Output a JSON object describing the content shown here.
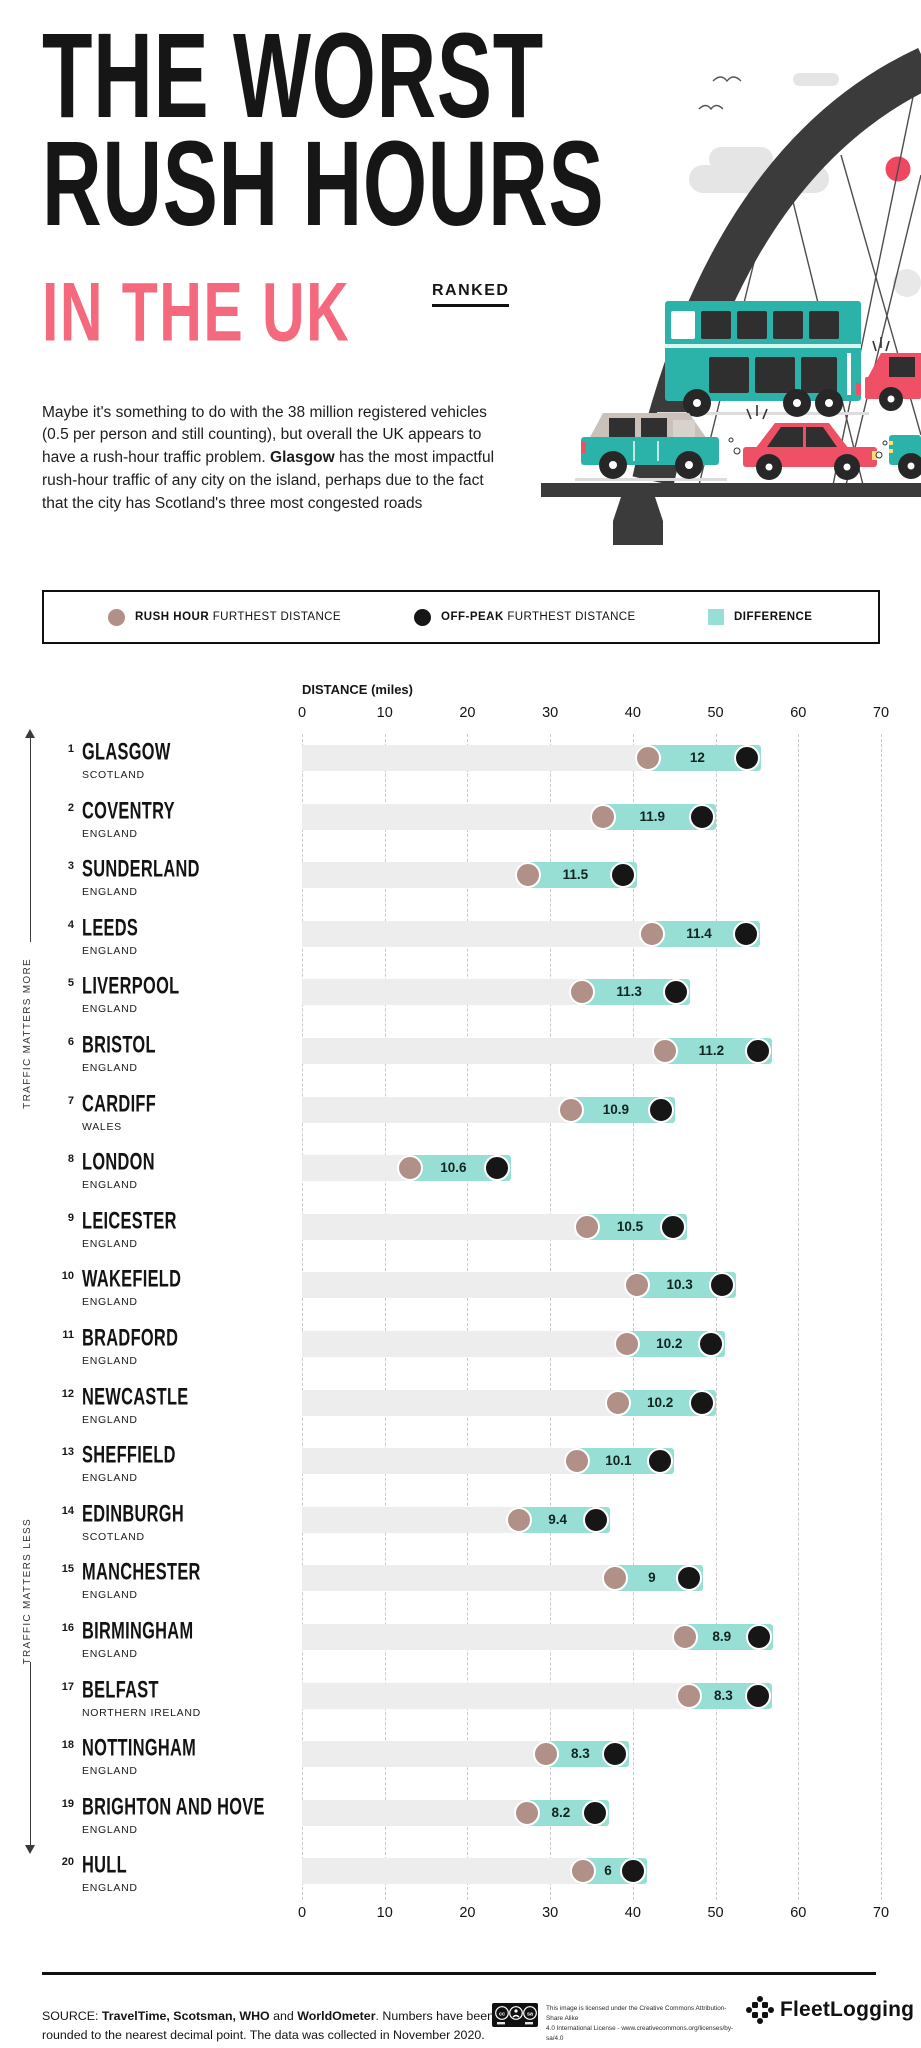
{
  "header": {
    "title_line1": "THE WORST",
    "title_line2": "RUSH HOURS",
    "subtitle": "IN THE UK",
    "ranked_label": "RANKED",
    "intro_parts": [
      {
        "t": "Maybe it's something to do with the 38 million registered vehicles (0.5 per person and still counting), but overall the UK appears to have a rush-hour traffic problem. ",
        "b": false
      },
      {
        "t": "Glasgow",
        "b": true
      },
      {
        "t": " has the most impactful rush-hour traffic of any city on the island, perhaps due to the fact that the city has Scotland's three most congested roads",
        "b": false
      }
    ]
  },
  "legend": {
    "items": [
      {
        "bold": "RUSH HOUR",
        "rest": " FURTHEST DISTANCE",
        "swatch": "taupe-circle"
      },
      {
        "bold": "OFF-PEAK",
        "rest": " FURTHEST DISTANCE",
        "swatch": "black-circle"
      },
      {
        "bold": "DIFFERENCE",
        "rest": "",
        "swatch": "teal-square"
      }
    ]
  },
  "annotations": {
    "more": "TRAFFIC MATTERS MORE",
    "less": "TRAFFIC MATTERS LESS"
  },
  "chart_data": {
    "type": "bar",
    "orientation": "horizontal",
    "title": "The Worst Rush Hours in the UK — Ranked",
    "xlabel": "DISTANCE (miles)",
    "xlim": [
      0,
      70
    ],
    "ticks": [
      0,
      10,
      20,
      30,
      40,
      50,
      60,
      70
    ],
    "grid": "vertical-dashed",
    "series_names": [
      "Rush hour furthest distance",
      "Off-peak furthest distance",
      "Difference"
    ],
    "rows": [
      {
        "rank": "1",
        "city": "GLASGOW",
        "country": "SCOTLAND",
        "rush_hour": 41.8,
        "off_peak": 53.8,
        "difference": "12"
      },
      {
        "rank": "2",
        "city": "COVENTRY",
        "country": "ENGLAND",
        "rush_hour": 36.4,
        "off_peak": 48.3,
        "difference": "11.9"
      },
      {
        "rank": "3",
        "city": "SUNDERLAND",
        "country": "ENGLAND",
        "rush_hour": 27.3,
        "off_peak": 38.8,
        "difference": "11.5"
      },
      {
        "rank": "4",
        "city": "LEEDS",
        "country": "ENGLAND",
        "rush_hour": 42.3,
        "off_peak": 53.7,
        "difference": "11.4"
      },
      {
        "rank": "5",
        "city": "LIVERPOOL",
        "country": "ENGLAND",
        "rush_hour": 33.9,
        "off_peak": 45.2,
        "difference": "11.3"
      },
      {
        "rank": "6",
        "city": "BRISTOL",
        "country": "ENGLAND",
        "rush_hour": 43.9,
        "off_peak": 55.1,
        "difference": "11.2"
      },
      {
        "rank": "7",
        "city": "CARDIFF",
        "country": "WALES",
        "rush_hour": 32.5,
        "off_peak": 43.4,
        "difference": "10.9"
      },
      {
        "rank": "8",
        "city": "LONDON",
        "country": "ENGLAND",
        "rush_hour": 13.0,
        "off_peak": 23.6,
        "difference": "10.6"
      },
      {
        "rank": "9",
        "city": "LEICESTER",
        "country": "ENGLAND",
        "rush_hour": 34.4,
        "off_peak": 44.9,
        "difference": "10.5"
      },
      {
        "rank": "10",
        "city": "WAKEFIELD",
        "country": "ENGLAND",
        "rush_hour": 40.5,
        "off_peak": 50.8,
        "difference": "10.3"
      },
      {
        "rank": "11",
        "city": "BRADFORD",
        "country": "ENGLAND",
        "rush_hour": 39.3,
        "off_peak": 49.5,
        "difference": "10.2"
      },
      {
        "rank": "12",
        "city": "NEWCASTLE",
        "country": "ENGLAND",
        "rush_hour": 38.2,
        "off_peak": 48.4,
        "difference": "10.2"
      },
      {
        "rank": "13",
        "city": "SHEFFIELD",
        "country": "ENGLAND",
        "rush_hour": 33.2,
        "off_peak": 43.3,
        "difference": "10.1"
      },
      {
        "rank": "14",
        "city": "EDINBURGH",
        "country": "SCOTLAND",
        "rush_hour": 26.2,
        "off_peak": 35.6,
        "difference": "9.4"
      },
      {
        "rank": "15",
        "city": "MANCHESTER",
        "country": "ENGLAND",
        "rush_hour": 37.8,
        "off_peak": 46.8,
        "difference": "9"
      },
      {
        "rank": "16",
        "city": "BIRMINGHAM",
        "country": "ENGLAND",
        "rush_hour": 46.3,
        "off_peak": 55.2,
        "difference": "8.9"
      },
      {
        "rank": "17",
        "city": "BELFAST",
        "country": "NORTHERN IRELAND",
        "rush_hour": 46.8,
        "off_peak": 55.1,
        "difference": "8.3"
      },
      {
        "rank": "18",
        "city": "NOTTINGHAM",
        "country": "ENGLAND",
        "rush_hour": 29.5,
        "off_peak": 37.8,
        "difference": "8.3"
      },
      {
        "rank": "19",
        "city": "BRIGHTON AND HOVE",
        "country": "ENGLAND",
        "rush_hour": 27.2,
        "off_peak": 35.4,
        "difference": "8.2"
      },
      {
        "rank": "20",
        "city": "HULL",
        "country": "ENGLAND",
        "rush_hour": 34.0,
        "off_peak": 40.0,
        "difference": "6"
      }
    ]
  },
  "colors": {
    "rush_dot": "#b19088",
    "off_peak_dot": "#161616",
    "difference_band": "#97dfd5",
    "track_gray": "#ededed",
    "accent_pink": "#f5697e",
    "illustration_teal": "#2cb3a9",
    "illustration_red": "#ef5066",
    "illustration_dark": "#3b3b3b"
  },
  "footer": {
    "source_parts": [
      {
        "t": "SOURCE: ",
        "b": false
      },
      {
        "t": "TravelTime, Scotsman, WHO",
        "b": true
      },
      {
        "t": " and ",
        "b": false
      },
      {
        "t": "WorldOmeter",
        "b": true
      },
      {
        "t": ". Numbers have been rounded to the nearest decimal point. The data was collected in November 2020.",
        "b": false
      }
    ],
    "license_line1": "This image is licensed under the Creative Commons Attribution-Share Alike",
    "license_line2": "4.0 International License - www.creativecommons.org/licenses/by-sa/4.0",
    "logo_name": "FleetLogging"
  }
}
